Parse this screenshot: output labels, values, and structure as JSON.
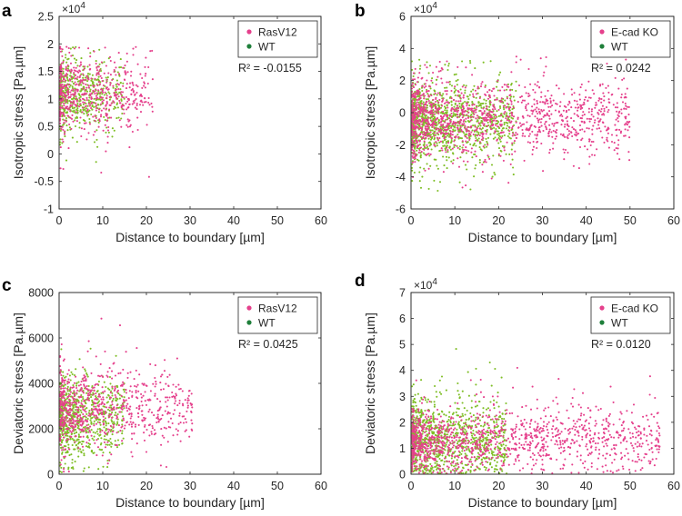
{
  "figure": {
    "colors": {
      "rasv12": "#e5408c",
      "wt_dot": "#7fbe26",
      "wt_legend": "#1e7f3a",
      "ecad": "#e5408c"
    }
  },
  "chart_data": [
    {
      "panel": "a",
      "type": "scatter",
      "xlabel": "Distance to boundary [µm]",
      "ylabel": "Isotropic stress [Pa.µm]",
      "exponent": "×10",
      "exponent_power": "4",
      "xlim": [
        0,
        60
      ],
      "ylim": [
        -1,
        2.5
      ],
      "xticks": [
        "0",
        "10",
        "20",
        "30",
        "40",
        "50",
        "60"
      ],
      "yticks": [
        "-1",
        "-0.5",
        "0",
        "0.5",
        "1",
        "1.5",
        "2",
        "2.5"
      ],
      "legend": [
        "RasV12",
        "WT"
      ],
      "legend_position": "top-right",
      "r2_label": "R² = -0.0155",
      "series": [
        {
          "name": "WT",
          "color": "#7fbe26",
          "n": 500,
          "seed": 11,
          "x": {
            "min": 0.2,
            "max": 15,
            "mode": "tri"
          },
          "y": {
            "center": 1.05,
            "spread": 0.3,
            "outlier_spread": 0.6,
            "min": -0.3,
            "max": 1.95
          }
        },
        {
          "name": "RasV12",
          "color": "#e5408c",
          "n": 550,
          "seed": 12,
          "x": {
            "min": 0.2,
            "max": 21.5,
            "mode": "tri"
          },
          "y": {
            "center": 1.1,
            "spread": 0.32,
            "outlier_spread": 0.7,
            "min": -0.5,
            "max": 1.95
          }
        }
      ]
    },
    {
      "panel": "b",
      "type": "scatter",
      "xlabel": "Distance to boundary [µm]",
      "ylabel": "Isotropic stress [Pa.µm]",
      "exponent": "×10",
      "exponent_power": "4",
      "xlim": [
        0,
        60
      ],
      "ylim": [
        -6,
        6
      ],
      "xticks": [
        "0",
        "10",
        "20",
        "30",
        "40",
        "50",
        "60"
      ],
      "yticks": [
        "-6",
        "-4",
        "-2",
        "0",
        "2",
        "4",
        "6"
      ],
      "legend": [
        "E-cad KO",
        "WT"
      ],
      "legend_position": "top-right",
      "r2_label": "R² = 0.0242",
      "series": [
        {
          "name": "WT",
          "color": "#7fbe26",
          "n": 1100,
          "seed": 21,
          "x": {
            "min": 0.2,
            "max": 24,
            "mode": "tri"
          },
          "y": {
            "center": -0.5,
            "spread": 1.2,
            "outlier_spread": 2.0,
            "min": -5.5,
            "max": 3.3
          }
        },
        {
          "name": "E-cad KO",
          "color": "#e5408c",
          "n": 1300,
          "seed": 22,
          "x": {
            "min": 0.2,
            "max": 50,
            "mode": "tri"
          },
          "y": {
            "center": -0.3,
            "spread": 1.1,
            "outlier_spread": 2.0,
            "min": -4.8,
            "max": 3.5
          }
        }
      ]
    },
    {
      "panel": "c",
      "type": "scatter",
      "xlabel": "Distance to boundary [µm]",
      "ylabel": "Deviatoric stress [Pa.µm]",
      "exponent": "",
      "exponent_power": "",
      "xlim": [
        0,
        60
      ],
      "ylim": [
        0,
        8000
      ],
      "xticks": [
        "0",
        "10",
        "20",
        "30",
        "40",
        "50",
        "60"
      ],
      "yticks": [
        "0",
        "2000",
        "4000",
        "6000",
        "8000"
      ],
      "legend": [
        "RasV12",
        "WT"
      ],
      "legend_position": "top-right",
      "r2_label": "R² = 0.0425",
      "series": [
        {
          "name": "WT",
          "color": "#7fbe26",
          "n": 700,
          "seed": 31,
          "x": {
            "min": 0.2,
            "max": 15,
            "mode": "tri"
          },
          "y": {
            "center": 2500,
            "spread": 900,
            "outlier_spread": 1500,
            "min": 60,
            "max": 6300
          }
        },
        {
          "name": "RasV12",
          "color": "#e5408c",
          "n": 750,
          "seed": 32,
          "x": {
            "min": 0.2,
            "max": 30.5,
            "mode": "tri"
          },
          "y": {
            "center": 2900,
            "spread": 800,
            "outlier_spread": 1500,
            "min": 100,
            "max": 7300
          }
        }
      ]
    },
    {
      "panel": "d",
      "type": "scatter",
      "xlabel": "Distance to boundary [µm]",
      "ylabel": "Deviatoric stress [Pa.µm]",
      "exponent": "×10",
      "exponent_power": "4",
      "xlim": [
        0,
        60
      ],
      "ylim": [
        0,
        7
      ],
      "xticks": [
        "0",
        "10",
        "20",
        "30",
        "40",
        "50",
        "60"
      ],
      "yticks": [
        "0",
        "1",
        "2",
        "3",
        "4",
        "5",
        "6",
        "7"
      ],
      "legend": [
        "E-cad KO",
        "WT"
      ],
      "legend_position": "top-right",
      "r2_label": "R² = 0.0120",
      "series": [
        {
          "name": "WT",
          "color": "#7fbe26",
          "n": 1000,
          "seed": 41,
          "x": {
            "min": 0.2,
            "max": 22,
            "mode": "tri"
          },
          "y": {
            "center": 1.3,
            "spread": 0.75,
            "outlier_spread": 1.4,
            "min": 0.02,
            "max": 5.6
          }
        },
        {
          "name": "E-cad KO",
          "color": "#e5408c",
          "n": 1250,
          "seed": 42,
          "x": {
            "min": 0.2,
            "max": 57,
            "mode": "tri"
          },
          "y": {
            "center": 1.3,
            "spread": 0.6,
            "outlier_spread": 1.1,
            "min": 0.02,
            "max": 5.2
          }
        }
      ]
    }
  ]
}
